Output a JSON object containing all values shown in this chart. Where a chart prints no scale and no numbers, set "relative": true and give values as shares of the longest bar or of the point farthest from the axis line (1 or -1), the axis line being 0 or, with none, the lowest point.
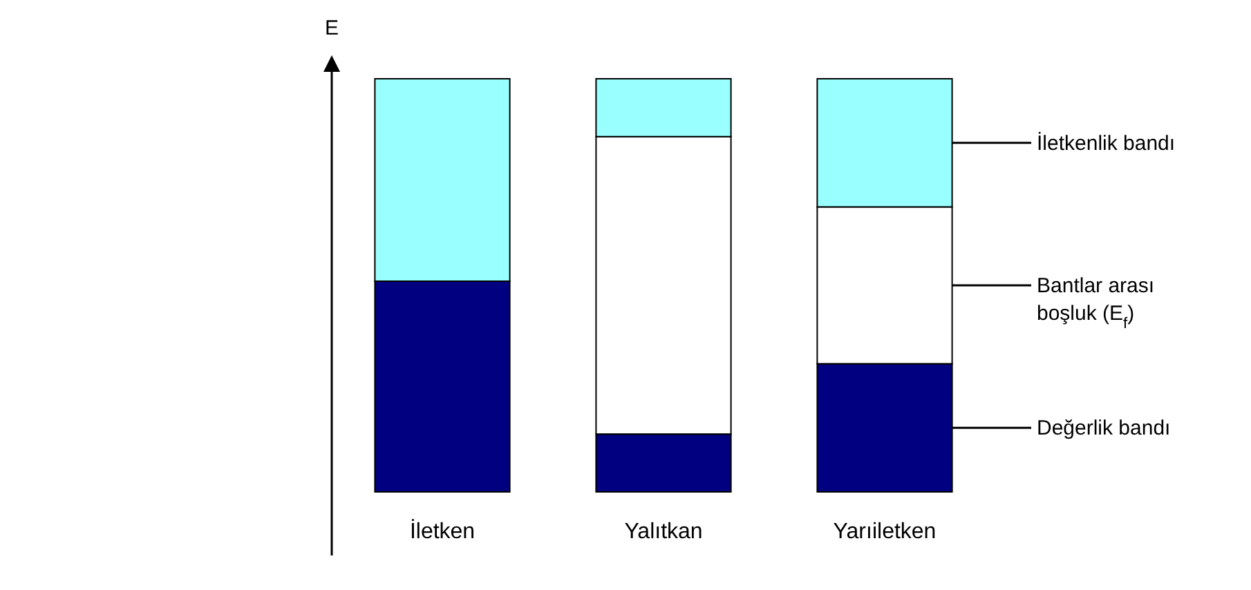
{
  "chart_data": {
    "type": "bar",
    "relative": true,
    "stacked": true,
    "legend": "right",
    "ylabel": "E",
    "categories": [
      "İletken",
      "Yalıtkan",
      "Yarıiletken"
    ],
    "series": [
      {
        "name": "Değerlik bandı",
        "color": "#000080",
        "values": [
          0.51,
          0.14,
          0.31
        ]
      },
      {
        "name": "Bantlar arası boşluk (E$_{f}$)",
        "color": "#ffffff",
        "values": [
          0,
          0.72,
          0.38
        ]
      },
      {
        "name": "İletkenlik bandı",
        "color": "#99ffff",
        "values": [
          0.49,
          0.14,
          0.31
        ]
      }
    ]
  }
}
